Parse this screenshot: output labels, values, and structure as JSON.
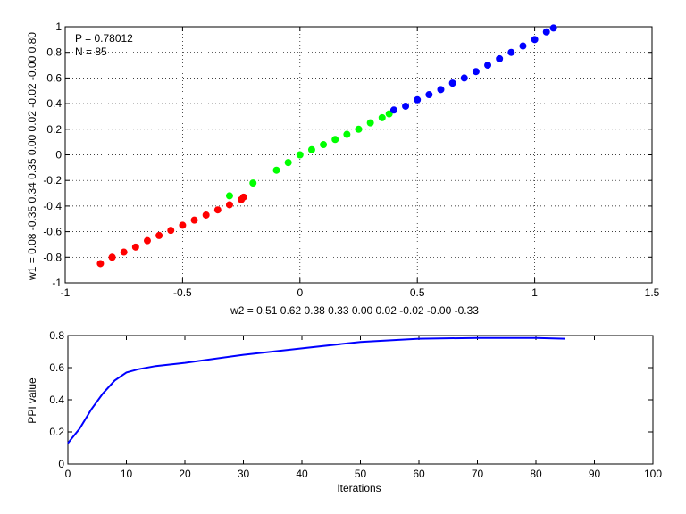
{
  "chart_data": [
    {
      "type": "scatter",
      "title": "",
      "xlim": [
        -1,
        1.5
      ],
      "ylim": [
        -1,
        1
      ],
      "xticks": [
        "-1",
        "-0.5",
        "0",
        "0.5",
        "1",
        "1.5"
      ],
      "yticks": [
        "-1",
        "-0.8",
        "-0.6",
        "-0.4",
        "-0.2",
        "0",
        "0.2",
        "0.4",
        "0.6",
        "0.8",
        "1"
      ],
      "grid": true,
      "xlabel": "w2 = 0.51  0.62  0.38  0.33  0.00  0.02  -0.02  -0.00  -0.33",
      "ylabel": "w1 = 0.08  -0.35  0.34  0.35  0.00  0.02  -0.02  -0.00  0.80",
      "annotations": [
        "P = 0.78012",
        "N = 85"
      ],
      "series": [
        {
          "color": "#ff0000",
          "x": [
            -0.85,
            -0.8,
            -0.75,
            -0.7,
            -0.65,
            -0.6,
            -0.55,
            -0.5,
            -0.45,
            -0.4,
            -0.35,
            -0.3,
            -0.25,
            -0.24
          ],
          "y": [
            -0.85,
            -0.8,
            -0.76,
            -0.72,
            -0.67,
            -0.63,
            -0.59,
            -0.55,
            -0.51,
            -0.47,
            -0.43,
            -0.39,
            -0.35,
            -0.33
          ]
        },
        {
          "color": "#00ff00",
          "x": [
            -0.3,
            -0.2,
            -0.1,
            -0.05,
            0,
            0.05,
            0.1,
            0.15,
            0.2,
            0.25,
            0.3,
            0.35,
            0.38
          ],
          "y": [
            -0.32,
            -0.22,
            -0.12,
            -0.06,
            0,
            0.04,
            0.08,
            0.12,
            0.16,
            0.2,
            0.25,
            0.29,
            0.32
          ]
        },
        {
          "color": "#0000ff",
          "x": [
            0.4,
            0.45,
            0.5,
            0.55,
            0.6,
            0.65,
            0.7,
            0.75,
            0.8,
            0.85,
            0.9,
            0.95,
            1.0,
            1.05,
            1.08
          ],
          "y": [
            0.35,
            0.38,
            0.43,
            0.47,
            0.51,
            0.56,
            0.6,
            0.65,
            0.7,
            0.75,
            0.8,
            0.85,
            0.9,
            0.96,
            0.99
          ]
        }
      ]
    },
    {
      "type": "line",
      "title": "",
      "xlim": [
        0,
        100
      ],
      "ylim": [
        0,
        0.8
      ],
      "xticks": [
        "0",
        "10",
        "20",
        "30",
        "40",
        "50",
        "60",
        "70",
        "80",
        "90",
        "100"
      ],
      "yticks": [
        "0",
        "0.2",
        "0.4",
        "0.6",
        "0.8"
      ],
      "grid": false,
      "xlabel": "Iterations",
      "ylabel": "PPI value",
      "series": [
        {
          "color": "#0000ff",
          "x": [
            0,
            2,
            4,
            6,
            8,
            10,
            12,
            15,
            20,
            30,
            40,
            50,
            60,
            70,
            80,
            85
          ],
          "y": [
            0.13,
            0.22,
            0.34,
            0.44,
            0.52,
            0.57,
            0.59,
            0.61,
            0.63,
            0.68,
            0.72,
            0.76,
            0.78,
            0.785,
            0.785,
            0.78
          ]
        }
      ]
    }
  ]
}
